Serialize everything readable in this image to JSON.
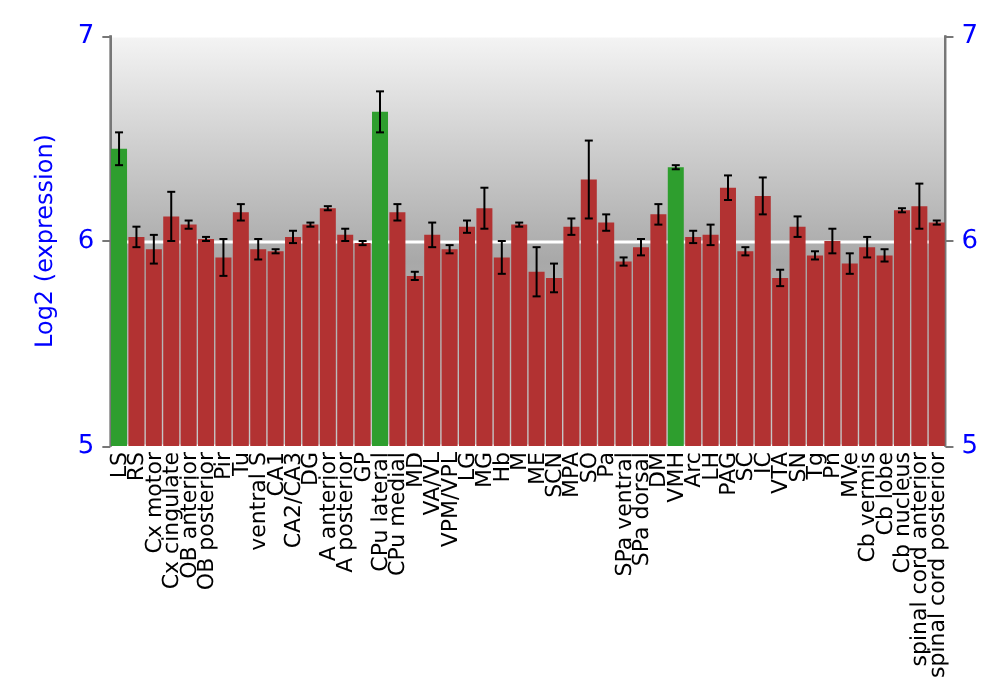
{
  "chart_data": {
    "type": "bar",
    "ylabel": "Log2 (expression)",
    "categories": [
      "LS",
      "RS",
      "Cx motor",
      "Cx cingulate",
      "OB anterior",
      "OB posterior",
      "Pir",
      "Tu",
      "ventral S",
      "CA1",
      "CA2/CA3",
      "DG",
      "A anterior",
      "A posterior",
      "GP",
      "CPu lateral",
      "CPu medial",
      "MD",
      "VA/VL",
      "VPM/VPL",
      "LG",
      "MG",
      "Hb",
      "M",
      "ME",
      "SCN",
      "MPA",
      "SO",
      "Pa",
      "SPa ventral",
      "SPa dorsal",
      "DM",
      "VMH",
      "Arc",
      "LH",
      "PAG",
      "SC",
      "IC",
      "VTA",
      "SN",
      "Tg",
      "Pn",
      "MVe",
      "Cb vermis",
      "Cb lobe",
      "Cb nucleus",
      "spinal cord anterior",
      "spinal cord posterior"
    ],
    "values": [
      6.45,
      6.02,
      5.96,
      6.12,
      6.08,
      6.01,
      5.92,
      6.14,
      5.96,
      5.95,
      6.02,
      6.08,
      6.16,
      6.03,
      5.99,
      6.63,
      6.14,
      5.83,
      6.03,
      5.96,
      6.07,
      6.16,
      5.92,
      6.08,
      5.85,
      5.82,
      6.07,
      6.3,
      6.09,
      5.9,
      5.97,
      6.13,
      6.36,
      6.02,
      6.03,
      6.26,
      5.95,
      6.22,
      5.82,
      6.07,
      5.93,
      6.0,
      5.89,
      5.97,
      5.93,
      6.15,
      6.17,
      6.09
    ],
    "errors": [
      0.08,
      0.05,
      0.07,
      0.12,
      0.02,
      0.01,
      0.09,
      0.04,
      0.05,
      0.01,
      0.03,
      0.01,
      0.01,
      0.03,
      0.01,
      0.1,
      0.04,
      0.02,
      0.06,
      0.02,
      0.03,
      0.1,
      0.08,
      0.01,
      0.12,
      0.07,
      0.04,
      0.19,
      0.04,
      0.02,
      0.04,
      0.05,
      0.01,
      0.03,
      0.05,
      0.06,
      0.02,
      0.09,
      0.04,
      0.05,
      0.02,
      0.06,
      0.05,
      0.05,
      0.03,
      0.01,
      0.11,
      0.01
    ],
    "colors": [
      "#2e9e2e",
      "#b23232",
      "#b23232",
      "#b23232",
      "#b23232",
      "#b23232",
      "#b23232",
      "#b23232",
      "#b23232",
      "#b23232",
      "#b23232",
      "#b23232",
      "#b23232",
      "#b23232",
      "#b23232",
      "#2e9e2e",
      "#b23232",
      "#b23232",
      "#b23232",
      "#b23232",
      "#b23232",
      "#b23232",
      "#b23232",
      "#b23232",
      "#b23232",
      "#b23232",
      "#b23232",
      "#b23232",
      "#b23232",
      "#b23232",
      "#b23232",
      "#b23232",
      "#2e9e2e",
      "#b23232",
      "#b23232",
      "#b23232",
      "#b23232",
      "#b23232",
      "#b23232",
      "#b23232",
      "#b23232",
      "#b23232",
      "#b23232",
      "#b23232",
      "#b23232",
      "#b23232",
      "#b23232",
      "#b23232"
    ],
    "ylim": [
      5,
      7
    ],
    "yticks": [
      5,
      6,
      7
    ],
    "y2lim": [
      5,
      7
    ],
    "y2ticks": [
      5,
      6,
      7
    ],
    "grid": "y"
  }
}
